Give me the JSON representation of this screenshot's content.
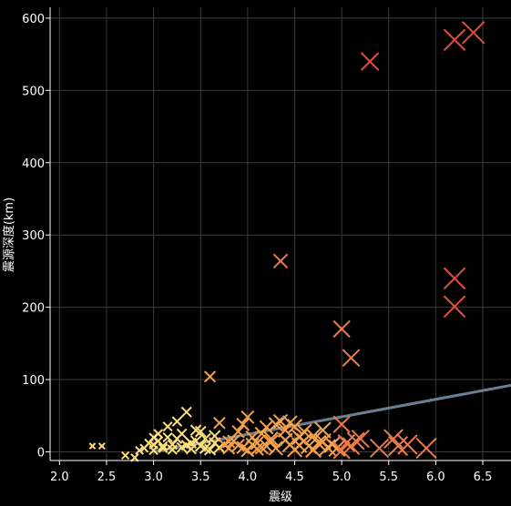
{
  "chart_data": {
    "type": "scatter",
    "title": "",
    "xlabel": "震级",
    "ylabel": "震源深度(km)",
    "xlim": [
      1.9,
      6.8
    ],
    "ylim": [
      -12,
      615
    ],
    "xticks": [
      2.0,
      2.5,
      3.0,
      3.5,
      4.0,
      4.5,
      5.0,
      5.5,
      6.0,
      6.5
    ],
    "yticks": [
      0,
      100,
      200,
      300,
      400,
      500,
      600
    ],
    "grid": true,
    "legend": "none",
    "marker": "x",
    "color_scale": [
      "#fde07a",
      "#f7a24a",
      "#ee7a4a",
      "#e24e42"
    ],
    "points": [
      {
        "x": 6.4,
        "y": 580
      },
      {
        "x": 6.2,
        "y": 570
      },
      {
        "x": 5.3,
        "y": 540
      },
      {
        "x": 4.35,
        "y": 264
      },
      {
        "x": 6.2,
        "y": 240
      },
      {
        "x": 6.2,
        "y": 201
      },
      {
        "x": 5.0,
        "y": 170
      },
      {
        "x": 5.1,
        "y": 130
      },
      {
        "x": 3.6,
        "y": 104
      },
      {
        "x": 3.35,
        "y": 55
      },
      {
        "x": 4.0,
        "y": 48
      },
      {
        "x": 3.7,
        "y": 40
      },
      {
        "x": 5.0,
        "y": 38
      },
      {
        "x": 3.25,
        "y": 42
      },
      {
        "x": 4.3,
        "y": 38
      },
      {
        "x": 4.5,
        "y": 35
      },
      {
        "x": 4.8,
        "y": 30
      },
      {
        "x": 5.55,
        "y": 18
      },
      {
        "x": 5.7,
        "y": 10
      },
      {
        "x": 5.4,
        "y": 5
      },
      {
        "x": 5.9,
        "y": 5
      },
      {
        "x": 5.6,
        "y": 8
      },
      {
        "x": 2.35,
        "y": 8
      },
      {
        "x": 2.45,
        "y": 8
      },
      {
        "x": 2.7,
        "y": -5
      },
      {
        "x": 2.8,
        "y": -8
      },
      {
        "x": 3.8,
        "y": 5
      },
      {
        "x": 3.0,
        "y": 10
      },
      {
        "x": 3.05,
        "y": 15
      },
      {
        "x": 3.1,
        "y": 5
      },
      {
        "x": 3.15,
        "y": 20
      },
      {
        "x": 3.2,
        "y": 10
      },
      {
        "x": 3.3,
        "y": 25
      },
      {
        "x": 3.4,
        "y": 12
      },
      {
        "x": 3.45,
        "y": 30
      },
      {
        "x": 3.5,
        "y": 8
      },
      {
        "x": 3.55,
        "y": 18
      },
      {
        "x": 3.65,
        "y": 22
      },
      {
        "x": 3.75,
        "y": 10
      },
      {
        "x": 3.85,
        "y": 15
      },
      {
        "x": 3.9,
        "y": 28
      },
      {
        "x": 3.95,
        "y": 6
      },
      {
        "x": 4.05,
        "y": 20
      },
      {
        "x": 4.1,
        "y": 12
      },
      {
        "x": 4.15,
        "y": 25
      },
      {
        "x": 4.2,
        "y": 8
      },
      {
        "x": 4.25,
        "y": 18
      },
      {
        "x": 4.4,
        "y": 30
      },
      {
        "x": 4.45,
        "y": 10
      },
      {
        "x": 4.55,
        "y": 20
      },
      {
        "x": 4.6,
        "y": 15
      },
      {
        "x": 4.65,
        "y": 8
      },
      {
        "x": 4.7,
        "y": 22
      },
      {
        "x": 4.75,
        "y": 12
      },
      {
        "x": 4.85,
        "y": 6
      },
      {
        "x": 4.9,
        "y": 10
      },
      {
        "x": 4.95,
        "y": 5
      },
      {
        "x": 5.05,
        "y": 12
      },
      {
        "x": 5.1,
        "y": 8
      },
      {
        "x": 5.15,
        "y": 15
      },
      {
        "x": 5.2,
        "y": 18
      },
      {
        "x": 3.0,
        "y": 2
      },
      {
        "x": 3.1,
        "y": 8
      },
      {
        "x": 3.2,
        "y": 3
      },
      {
        "x": 3.3,
        "y": 6
      },
      {
        "x": 3.4,
        "y": 4
      },
      {
        "x": 2.9,
        "y": 5
      },
      {
        "x": 2.95,
        "y": 12
      },
      {
        "x": 3.0,
        "y": 20
      },
      {
        "x": 3.6,
        "y": 3
      },
      {
        "x": 3.7,
        "y": 6
      },
      {
        "x": 4.0,
        "y": 2
      },
      {
        "x": 4.3,
        "y": 5
      },
      {
        "x": 4.5,
        "y": 3
      },
      {
        "x": 3.25,
        "y": 18
      },
      {
        "x": 3.35,
        "y": 9
      },
      {
        "x": 3.8,
        "y": 14
      },
      {
        "x": 4.1,
        "y": 4
      },
      {
        "x": 4.6,
        "y": 28
      },
      {
        "x": 4.4,
        "y": 16
      },
      {
        "x": 3.5,
        "y": 28
      },
      {
        "x": 4.2,
        "y": 34
      },
      {
        "x": 4.35,
        "y": 42
      },
      {
        "x": 4.45,
        "y": 40
      },
      {
        "x": 3.15,
        "y": 35
      },
      {
        "x": 3.95,
        "y": 38
      },
      {
        "x": 4.7,
        "y": 3
      },
      {
        "x": 5.0,
        "y": 2
      },
      {
        "x": 3.05,
        "y": 25
      },
      {
        "x": 3.45,
        "y": 15
      },
      {
        "x": 3.55,
        "y": 5
      },
      {
        "x": 3.65,
        "y": 12
      },
      {
        "x": 3.9,
        "y": 9
      },
      {
        "x": 4.05,
        "y": 10
      },
      {
        "x": 4.15,
        "y": 6
      },
      {
        "x": 4.25,
        "y": 14
      },
      {
        "x": 4.55,
        "y": 9
      },
      {
        "x": 4.8,
        "y": 14
      },
      {
        "x": 2.85,
        "y": 2
      }
    ],
    "trendline": {
      "x": [
        3.0,
        6.8
      ],
      "y": [
        0,
        92
      ],
      "color": "#6a7e94"
    }
  }
}
